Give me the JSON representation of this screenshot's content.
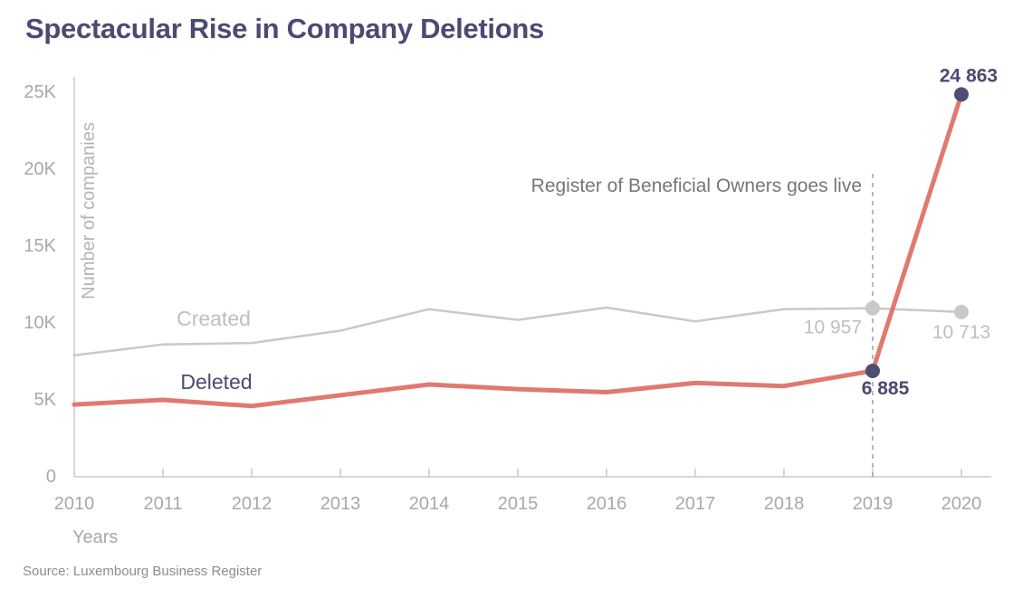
{
  "title": "Spectacular Rise in Company Deletions",
  "source": "Source: Luxembourg Business Register",
  "colors": {
    "navy": "#4a4a73",
    "dot_navy": "#4e4e75",
    "salmon": "#e0796f",
    "gray_line": "#c9c9cb",
    "axis_text": "#a8a8aa",
    "light_label": "#bfbfc3",
    "ylabel_text": "#b4b4b6",
    "annotation_text": "#76767a",
    "dashed_line": "#a0a0a3"
  },
  "chart_data": {
    "type": "line",
    "title": "Spectacular Rise in Company Deletions",
    "xlabel": "Years",
    "ylabel": "Number of companies",
    "x": [
      2010,
      2011,
      2012,
      2013,
      2014,
      2015,
      2016,
      2017,
      2018,
      2019,
      2020
    ],
    "series": [
      {
        "name": "Created",
        "values": [
          7900,
          8600,
          8700,
          9500,
          10900,
          10200,
          11000,
          10100,
          10900,
          10957,
          10713
        ],
        "color": "#c9c9cb",
        "label_color": "#bfbfc3",
        "dot_color": "#c9c9cb",
        "width": 2.5
      },
      {
        "name": "Deleted",
        "values": [
          4700,
          5000,
          4600,
          5300,
          6000,
          5700,
          5500,
          6100,
          5900,
          6885,
          24863
        ],
        "color": "#e0796f",
        "label_color": "#4a4a73",
        "dot_color": "#4e4e75",
        "width": 5
      }
    ],
    "ylim": [
      0,
      25000
    ],
    "yticks": [
      0,
      5000,
      10000,
      15000,
      20000,
      25000
    ],
    "ytick_labels": [
      "0",
      "5K",
      "10K",
      "15K",
      "20K",
      "25K"
    ],
    "grid": false,
    "legend": "inline",
    "annotation": {
      "text": "Register of Beneficial Owners goes live",
      "x": 2019
    },
    "point_labels": [
      {
        "series": "Deleted",
        "year": 2020,
        "label": "24 863",
        "value": 24863
      },
      {
        "series": "Created",
        "year": 2019,
        "label": "10 957",
        "value": 10957
      },
      {
        "series": "Created",
        "year": 2020,
        "label": "10 713",
        "value": 10713
      },
      {
        "series": "Deleted",
        "year": 2019,
        "label": "6 885",
        "value": 6885
      }
    ]
  }
}
